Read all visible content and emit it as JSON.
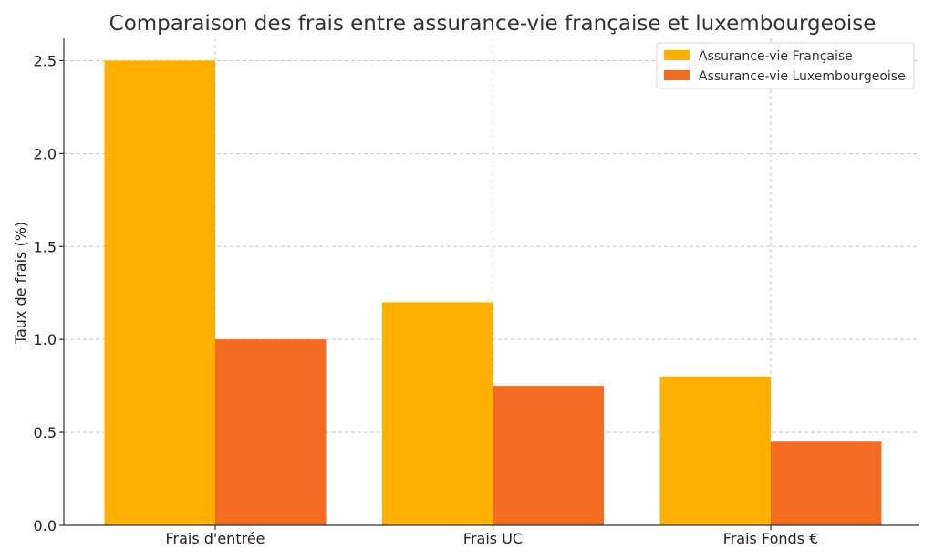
{
  "chart_data": {
    "type": "bar",
    "title": "Comparaison des frais entre assurance-vie française et luxembourgeoise",
    "xlabel": "",
    "ylabel": "Taux de frais (%)",
    "categories": [
      "Frais d'entrée",
      "Frais UC",
      "Frais Fonds €"
    ],
    "series": [
      {
        "name": "Assurance-vie Française",
        "values": [
          2.5,
          1.2,
          0.8
        ],
        "color": "#FFB000"
      },
      {
        "name": "Assurance-vie Luxembourgeoise",
        "values": [
          1.0,
          0.75,
          0.45
        ],
        "color": "#F46B22"
      }
    ],
    "ylim": [
      0,
      2.62
    ],
    "yticks": [
      "0.0",
      "0.5",
      "1.0",
      "1.5",
      "2.0",
      "2.5"
    ],
    "grid": true,
    "legend_position": "top-right"
  }
}
